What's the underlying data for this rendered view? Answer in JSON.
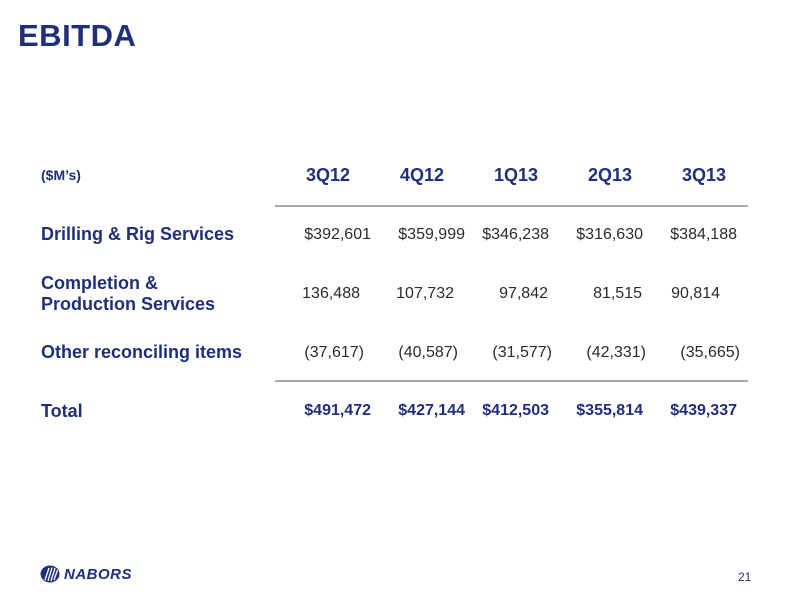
{
  "slide": {
    "title": "EBITDA",
    "page_number": "21"
  },
  "table": {
    "units_label": "($M’s)",
    "columns": [
      "3Q12",
      "4Q12",
      "1Q13",
      "2Q13",
      "3Q13"
    ],
    "rows": [
      {
        "label": "Drilling & Rig Services",
        "values": [
          "$392,601",
          "$359,999",
          "$346,238",
          "$316,630",
          "$384,188"
        ]
      },
      {
        "label_line1": "Completion &",
        "label_line2": "Production Services",
        "values": [
          "136,488",
          "107,732",
          "97,842",
          "81,515",
          "90,814"
        ]
      },
      {
        "label": "Other reconciling items",
        "values": [
          "(37,617)",
          "(40,587)",
          "(31,577)",
          "(42,331)",
          "(35,665)"
        ]
      },
      {
        "label": "Total",
        "values": [
          "$491,472",
          "$427,144",
          "$412,503",
          "$355,814",
          "$439,337"
        ]
      }
    ]
  },
  "footer": {
    "logo_text": "NABORS",
    "logo_icon": "nabors-logo-icon",
    "brand_color": "#1f2f7a"
  }
}
